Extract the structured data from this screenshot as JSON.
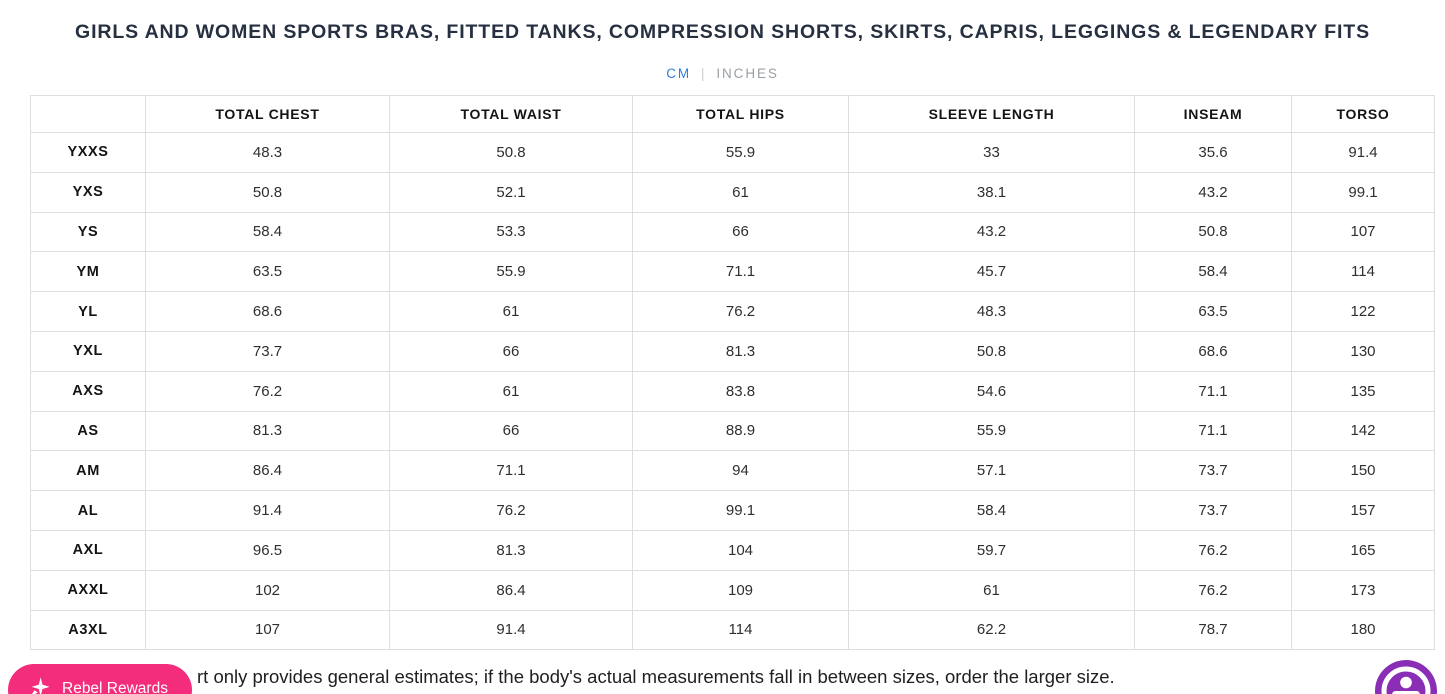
{
  "page": {
    "title": "GIRLS AND WOMEN SPORTS BRAS, FITTED TANKS, COMPRESSION SHORTS, SKIRTS, CAPRIS, LEGGINGS & LEGENDARY FITS"
  },
  "unit_toggle": {
    "cm_label": "CM",
    "separator": "|",
    "inches_label": "INCHES",
    "active_unit": "CM",
    "active_color": "#2f7fd9",
    "inactive_color": "#9aa0a6"
  },
  "size_table": {
    "columns": [
      "",
      "TOTAL CHEST",
      "TOTAL WAIST",
      "TOTAL HIPS",
      "SLEEVE LENGTH",
      "INSEAM",
      "TORSO"
    ],
    "rows": [
      {
        "size": "YXXS",
        "values": [
          "48.3",
          "50.8",
          "55.9",
          "33",
          "35.6",
          "91.4"
        ]
      },
      {
        "size": "YXS",
        "values": [
          "50.8",
          "52.1",
          "61",
          "38.1",
          "43.2",
          "99.1"
        ]
      },
      {
        "size": "YS",
        "values": [
          "58.4",
          "53.3",
          "66",
          "43.2",
          "50.8",
          "107"
        ]
      },
      {
        "size": "YM",
        "values": [
          "63.5",
          "55.9",
          "71.1",
          "45.7",
          "58.4",
          "114"
        ]
      },
      {
        "size": "YL",
        "values": [
          "68.6",
          "61",
          "76.2",
          "48.3",
          "63.5",
          "122"
        ]
      },
      {
        "size": "YXL",
        "values": [
          "73.7",
          "66",
          "81.3",
          "50.8",
          "68.6",
          "130"
        ]
      },
      {
        "size": "AXS",
        "values": [
          "76.2",
          "61",
          "83.8",
          "54.6",
          "71.1",
          "135"
        ]
      },
      {
        "size": "AS",
        "values": [
          "81.3",
          "66",
          "88.9",
          "55.9",
          "71.1",
          "142"
        ]
      },
      {
        "size": "AM",
        "values": [
          "86.4",
          "71.1",
          "94",
          "57.1",
          "73.7",
          "150"
        ]
      },
      {
        "size": "AL",
        "values": [
          "91.4",
          "76.2",
          "99.1",
          "58.4",
          "73.7",
          "157"
        ]
      },
      {
        "size": "AXL",
        "values": [
          "96.5",
          "81.3",
          "104",
          "59.7",
          "76.2",
          "165"
        ]
      },
      {
        "size": "AXXL",
        "values": [
          "102",
          "86.4",
          "109",
          "61",
          "76.2",
          "173"
        ]
      },
      {
        "size": "A3XL",
        "values": [
          "107",
          "91.4",
          "114",
          "62.2",
          "78.7",
          "180"
        ]
      }
    ]
  },
  "footnote": {
    "visible_text": "rt only provides general estimates; if the body's actual measurements fall in between sizes, order the larger size."
  },
  "rewards_badge": {
    "label": "Rebel Rewards",
    "background_color": "#f32d7b"
  },
  "accessibility_widget": {
    "color": "#8a2fb5"
  }
}
